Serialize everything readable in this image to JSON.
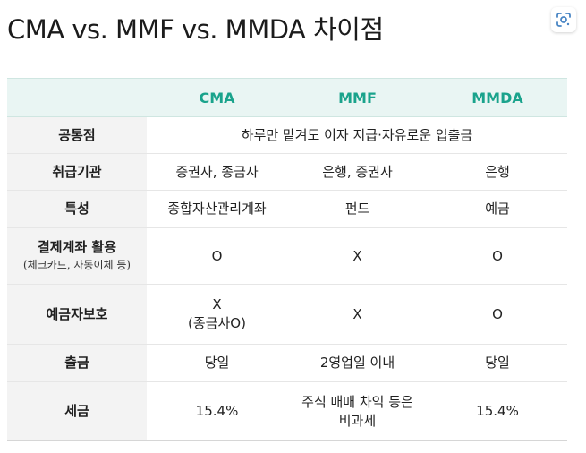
{
  "title": "CMA vs. MMF vs. MMDA 차이점",
  "lens_icon": "google-lens-icon",
  "table": {
    "headers": [
      "",
      "CMA",
      "MMF",
      "MMDA"
    ],
    "rows": [
      {
        "label": "공통점",
        "merged": "하루만 맡겨도 이자 지급·자유로운 입출금"
      },
      {
        "label": "취급기관",
        "cells": [
          [
            "증권사, 종금사"
          ],
          [
            "은행, 증권사"
          ],
          [
            "은행"
          ]
        ]
      },
      {
        "label": "특성",
        "cells": [
          [
            "종합자산관리계좌"
          ],
          [
            "펀드"
          ],
          [
            "예금"
          ]
        ]
      },
      {
        "label": "결제계좌 활용",
        "sublabel": "(체크카드, 자동이체 등)",
        "cells": [
          [
            "O"
          ],
          [
            "X"
          ],
          [
            "O"
          ]
        ]
      },
      {
        "label": "예금자보호",
        "cells": [
          [
            "X",
            "(종금사O)"
          ],
          [
            "X"
          ],
          [
            "O"
          ]
        ]
      },
      {
        "label": "출금",
        "cells": [
          [
            "당일"
          ],
          [
            "2영업일 이내"
          ],
          [
            "당일"
          ]
        ]
      },
      {
        "label": "세금",
        "cells": [
          [
            "15.4%"
          ],
          [
            "주식 매매 차익 등은",
            "비과세"
          ],
          [
            "15.4%"
          ]
        ]
      }
    ]
  },
  "colors": {
    "header_bg": "#e9f5f3",
    "header_text": "#1aa38c",
    "rowhead_bg": "#f3f3f3",
    "border": "#e6e6e6"
  }
}
